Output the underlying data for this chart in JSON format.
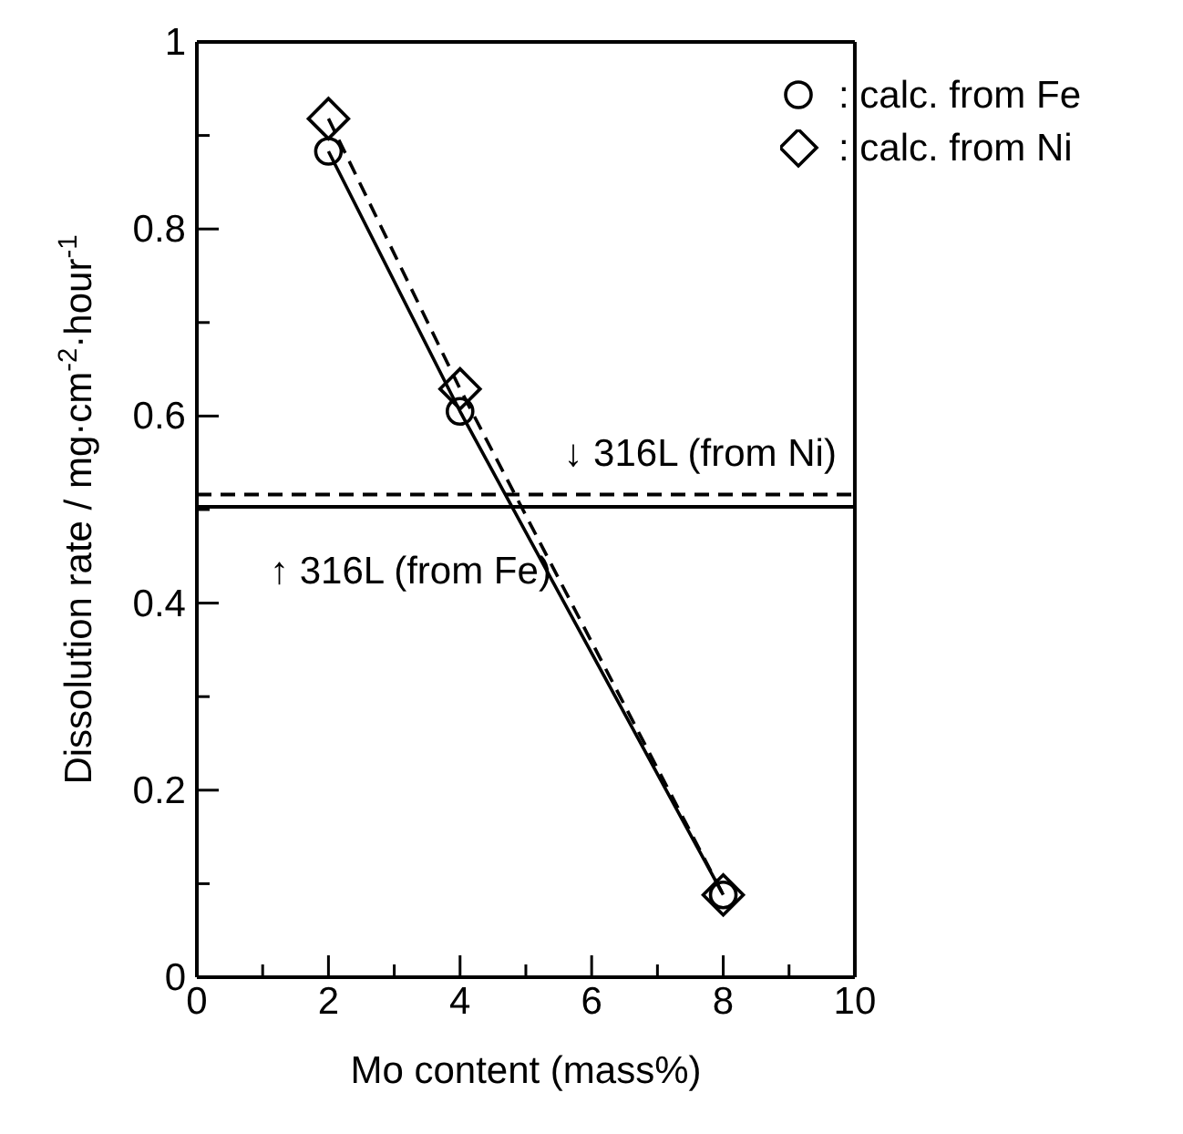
{
  "chart_data": {
    "type": "line",
    "xlabel": "Mo content (mass%)",
    "ylabel": "Dissolution rate / mg·cm$^{-2}$·hour$^{-1}$",
    "x": [
      2,
      4,
      8
    ],
    "series": [
      {
        "name": ": calc. from Fe",
        "color": "#000000",
        "values": [
          0.883,
          0.605,
          0.088
        ],
        "marker": "circle",
        "line_style": "solid"
      },
      {
        "name": ": calc. from Ni",
        "color": "#000000",
        "values": [
          0.918,
          0.629,
          0.088
        ],
        "marker": "diamond",
        "line_style": "dashed"
      }
    ],
    "xlim": [
      0,
      10
    ],
    "xticks": [
      0,
      {
        "value": 1,
        "label": null
      },
      2,
      {
        "value": 3,
        "label": null
      },
      4,
      {
        "value": 5,
        "label": null
      },
      6,
      {
        "value": 7,
        "label": null
      },
      8,
      {
        "value": 9,
        "label": null
      },
      10
    ],
    "ylim": [
      0,
      1
    ],
    "yticks": [
      0,
      {
        "value": 0.1,
        "label": null
      },
      0.2,
      {
        "value": 0.3,
        "label": null
      },
      0.4,
      {
        "value": 0.5,
        "label": null
      },
      0.6,
      {
        "value": 0.7,
        "label": null
      },
      0.8,
      {
        "value": 0.9,
        "label": null
      },
      1
    ],
    "ref_lines": [
      {
        "axis": "y",
        "value": 0.503,
        "label": "↑ 316L (from Fe)",
        "color": "#000000",
        "line_style": "solid"
      },
      {
        "axis": "y",
        "value": 0.516,
        "label": "↓ 316L (from Ni)",
        "color": "#000000",
        "line_style": "dashed"
      }
    ],
    "legend": "top right",
    "grid": false
  }
}
